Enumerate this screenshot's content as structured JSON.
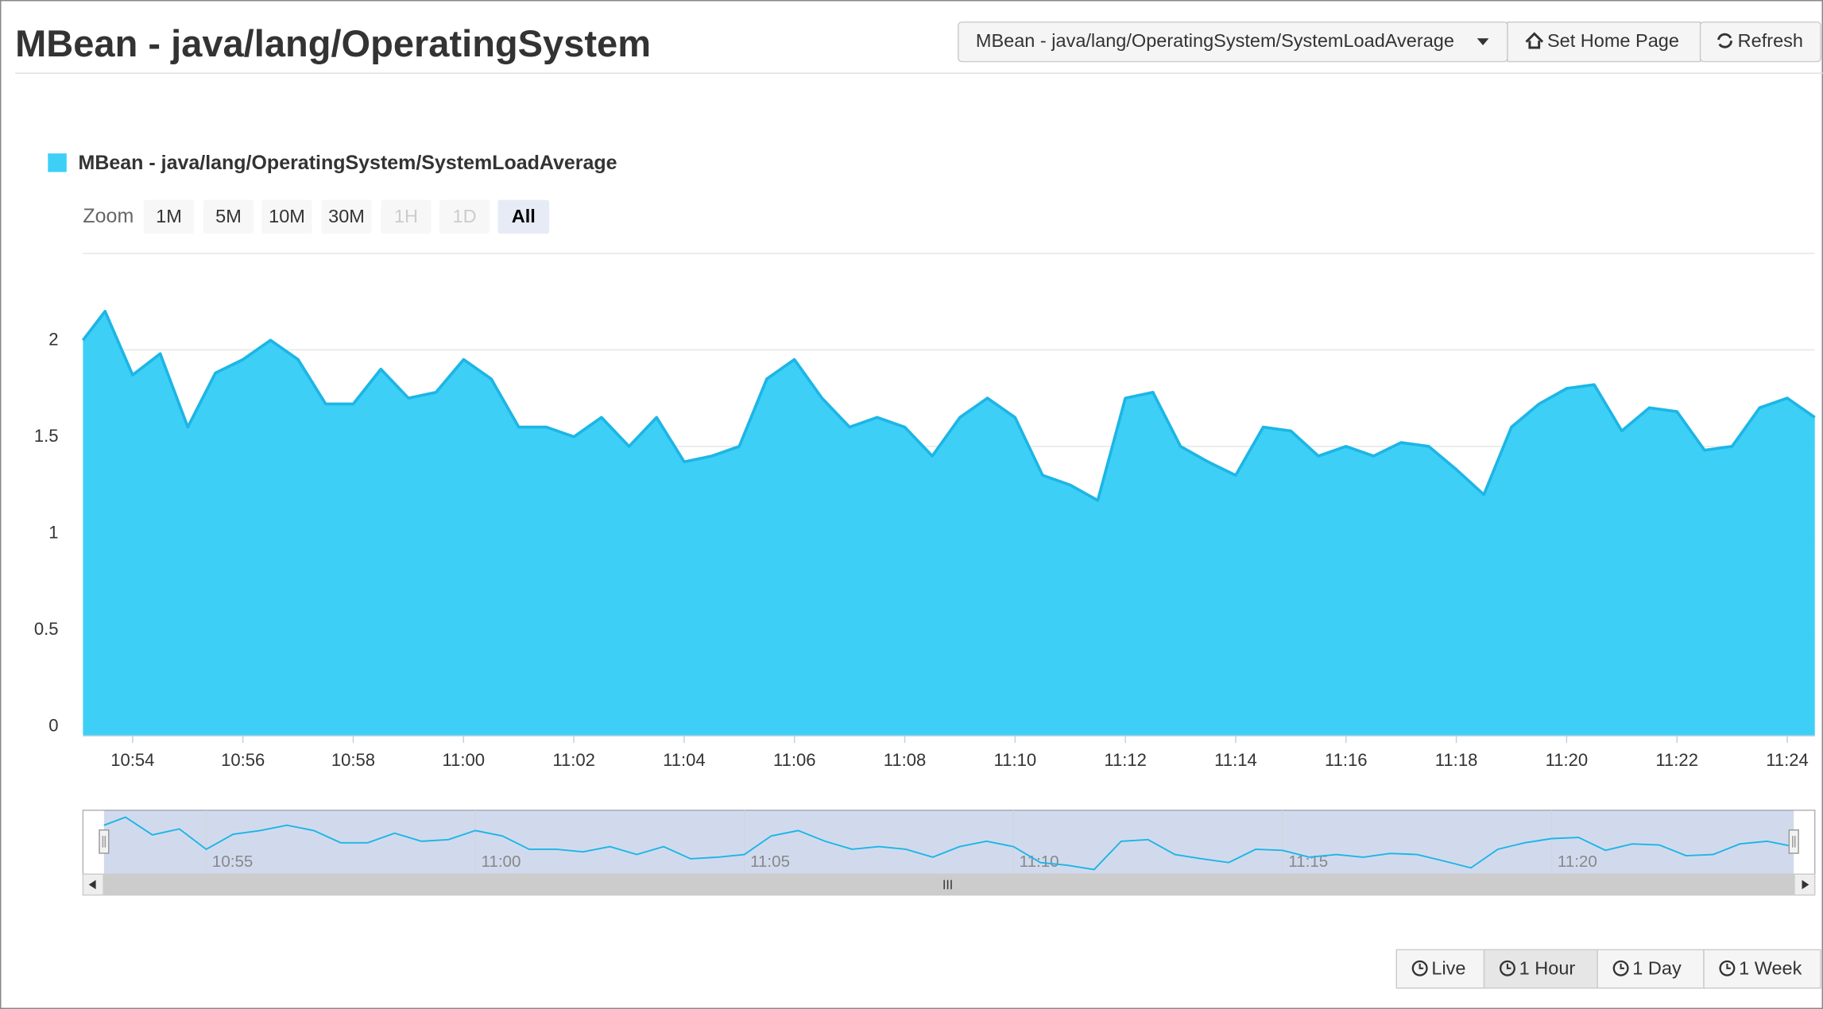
{
  "header": {
    "title": "MBean - java/lang/OperatingSystem",
    "dropdown": "MBean - java/lang/OperatingSystem/SystemLoadAverage",
    "home_button": "Set Home Page",
    "refresh_button": "Refresh"
  },
  "zoom": {
    "label": "Zoom",
    "buttons": [
      {
        "label": "1M",
        "enabled": true,
        "active": false
      },
      {
        "label": "5M",
        "enabled": true,
        "active": false
      },
      {
        "label": "10M",
        "enabled": true,
        "active": false
      },
      {
        "label": "30M",
        "enabled": true,
        "active": false
      },
      {
        "label": "1H",
        "enabled": false,
        "active": false
      },
      {
        "label": "1D",
        "enabled": false,
        "active": false
      },
      {
        "label": "All",
        "enabled": true,
        "active": true
      }
    ]
  },
  "range_buttons": [
    {
      "label": "Live",
      "active": false
    },
    {
      "label": "1 Hour",
      "active": true
    },
    {
      "label": "1 Day",
      "active": false
    },
    {
      "label": "1 Week",
      "active": false
    }
  ],
  "chart_data": {
    "type": "area",
    "name": "MBean - java/lang/OperatingSystem/SystemLoadAverage",
    "color": "#3ecff7",
    "line_color": "#1cb6e6",
    "grid": true,
    "x": [
      653.1,
      653.5,
      654,
      654.5,
      655,
      655.5,
      656,
      656.5,
      657,
      657.5,
      658,
      658.5,
      659,
      659.5,
      660,
      660.5,
      661,
      661.5,
      662,
      662.5,
      663,
      663.5,
      664,
      664.5,
      665,
      665.5,
      666,
      666.5,
      667,
      667.5,
      668,
      668.5,
      669,
      669.5,
      670,
      670.5,
      671,
      671.5,
      672,
      672.5,
      673,
      673.5,
      674,
      674.5,
      675,
      675.5,
      676,
      676.5,
      677,
      677.5,
      678,
      678.5,
      679,
      679.5,
      680,
      680.5,
      681,
      681.5,
      682,
      682.5,
      683,
      683.5,
      684,
      684.5
    ],
    "values": [
      2.05,
      2.2,
      1.87,
      1.98,
      1.6,
      1.88,
      1.95,
      2.05,
      1.95,
      1.72,
      1.72,
      1.9,
      1.75,
      1.78,
      1.95,
      1.85,
      1.6,
      1.6,
      1.55,
      1.65,
      1.5,
      1.65,
      1.42,
      1.45,
      1.5,
      1.85,
      1.95,
      1.75,
      1.6,
      1.65,
      1.6,
      1.45,
      1.65,
      1.75,
      1.65,
      1.35,
      1.3,
      1.22,
      1.75,
      1.78,
      1.5,
      1.42,
      1.35,
      1.6,
      1.58,
      1.45,
      1.5,
      1.45,
      1.52,
      1.5,
      1.38,
      1.25,
      1.6,
      1.72,
      1.8,
      1.82,
      1.58,
      1.7,
      1.68,
      1.48,
      1.5,
      1.7,
      1.75,
      1.65
    ],
    "xlim": [
      653.1,
      684.5
    ],
    "ylim": [
      0,
      2.5
    ],
    "yticks": [
      0,
      0.5,
      1,
      1.5,
      2
    ],
    "xticks": [
      {
        "value": 654,
        "label": "10:54"
      },
      {
        "value": 656,
        "label": "10:56"
      },
      {
        "value": 658,
        "label": "10:58"
      },
      {
        "value": 660,
        "label": "11:00"
      },
      {
        "value": 662,
        "label": "11:02"
      },
      {
        "value": 664,
        "label": "11:04"
      },
      {
        "value": 666,
        "label": "11:06"
      },
      {
        "value": 668,
        "label": "11:08"
      },
      {
        "value": 670,
        "label": "11:10"
      },
      {
        "value": 672,
        "label": "11:12"
      },
      {
        "value": 674,
        "label": "11:14"
      },
      {
        "value": 676,
        "label": "11:16"
      },
      {
        "value": 678,
        "label": "11:18"
      },
      {
        "value": 680,
        "label": "11:20"
      },
      {
        "value": 682,
        "label": "11:22"
      },
      {
        "value": 684,
        "label": "11:24"
      }
    ],
    "navigator_xticks": [
      {
        "value": 655,
        "label": "10:55"
      },
      {
        "value": 660,
        "label": "11:00"
      },
      {
        "value": 665,
        "label": "11:05"
      },
      {
        "value": 670,
        "label": "11:10"
      },
      {
        "value": 675,
        "label": "11:15"
      },
      {
        "value": 680,
        "label": "11:20"
      }
    ]
  }
}
